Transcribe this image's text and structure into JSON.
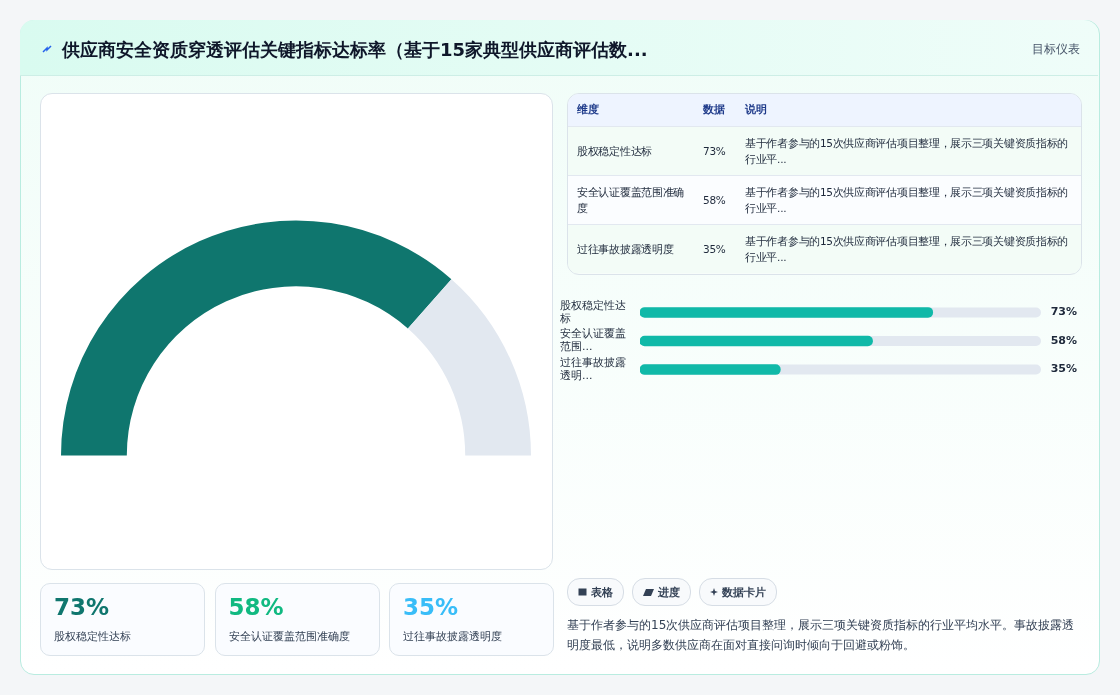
{
  "chart_data": [
    {
      "type": "donut",
      "title": "供应商安全资质穿透评估关键指标达标率（基于15家典型供应商评估数...",
      "categories": [
        null,
        null
      ],
      "values": [
        73,
        27
      ],
      "colors": [
        "#0f766e",
        "#e2e8f0"
      ],
      "annotations": [
        "目标仪表",
        "表格",
        "进度",
        "数据卡片",
        "基于作者参与的15次供应商评估项目整理，展示三项关键资质指标的行业平均水平。事故披露透明度最低，说明多数供应商在面对直接问询时倾向于回避或粉饰。"
      ]
    },
    {
      "type": "other",
      "categories": [
        "股权稳定性达标",
        "安全认证覆盖范围准确度",
        "过往事故披露透明度"
      ],
      "value_labels": [
        "73%",
        "58%",
        "35%"
      ],
      "annotations": [
        "维度",
        "数据",
        "说明",
        "基于作者参与的15次供应商评估项目整理，展示三项关键资质指标的行业平...",
        "基于作者参与的15次供应商评估项目整理，展示三项关键资质指标的行业平...",
        "基于作者参与的15次供应商评估项目整理，展示三项关键资质指标的行业平..."
      ]
    },
    {
      "type": "bar",
      "orientation": "horizontal",
      "categories": [
        "股权稳定性达标",
        "安全认证覆盖范围...",
        "过往事故披露透明..."
      ],
      "values": [
        73,
        58,
        35
      ],
      "value_labels": [
        "73%",
        "58%",
        "35%"
      ],
      "color": "#10b9a8",
      "xlim": [
        0,
        100
      ],
      "tick_labels": "y",
      "grid": false
    },
    {
      "type": "other",
      "categories": [
        "股权稳定性达标",
        "安全认证覆盖范围准确度",
        "过往事故披露透明度"
      ],
      "value_labels": [
        "73%",
        "58%",
        "35%"
      ]
    }
  ]
}
